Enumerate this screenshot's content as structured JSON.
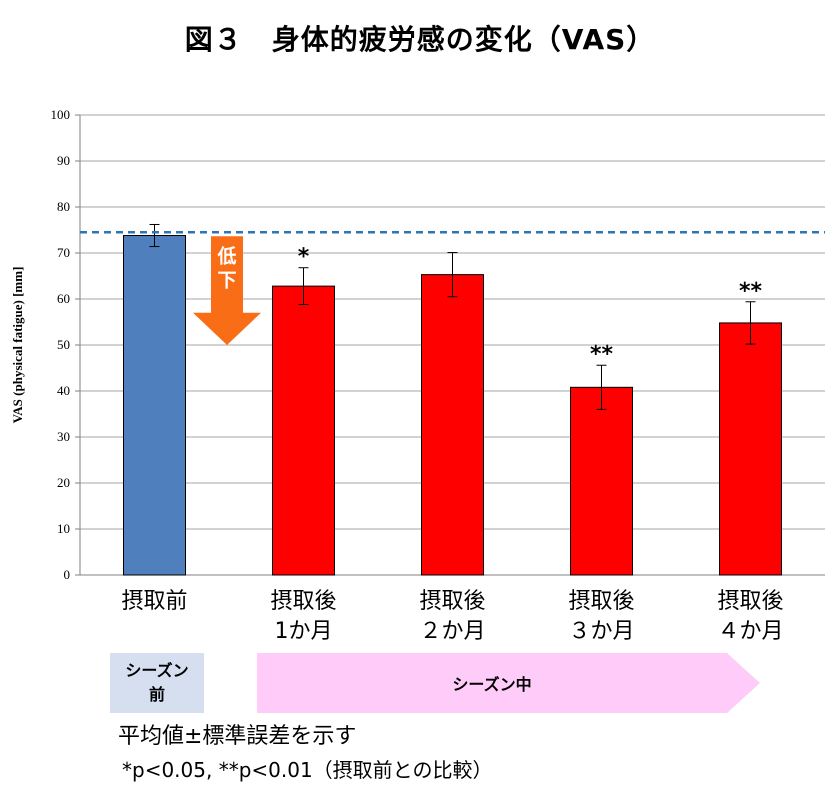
{
  "title": "図３　身体的疲労感の変化（VAS）",
  "chart_data": {
    "type": "bar",
    "ylabel": "VAS (physical fatigue) [mm]",
    "ylim": [
      0,
      100
    ],
    "yticks": [
      0,
      10,
      20,
      30,
      40,
      50,
      60,
      70,
      80,
      90,
      100
    ],
    "grid": true,
    "reference_line": 74.5,
    "categories": [
      [
        "摂取前"
      ],
      [
        "摂取後",
        "1か月"
      ],
      [
        "摂取後",
        "２か月"
      ],
      [
        "摂取後",
        "３か月"
      ],
      [
        "摂取後",
        "４か月"
      ]
    ],
    "values": [
      73.8,
      62.8,
      65.3,
      40.8,
      54.8
    ],
    "errors": [
      2.4,
      4.0,
      4.8,
      4.8,
      4.6
    ],
    "significance": [
      "",
      "*",
      "",
      "**",
      "**"
    ],
    "bar_colors": [
      "#4f7fbd",
      "#ff0000",
      "#ff0000",
      "#ff0000",
      "#ff0000"
    ],
    "annotation_arrow": {
      "text_top": "低",
      "text_bottom": "下",
      "color": "#f96d16"
    }
  },
  "period": {
    "pre_line1": "シーズン",
    "pre_line2": "前",
    "during": "シーズン中",
    "pre_color": "#d5dff0",
    "during_color": "#ffccf9"
  },
  "notes": {
    "line1": "平均値±標準誤差を示す",
    "line2": "*p<0.05, **p<0.01（摂取前との比較）"
  }
}
